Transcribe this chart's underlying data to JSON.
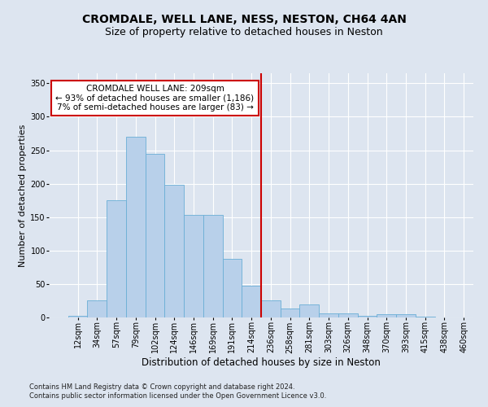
{
  "title1": "CROMDALE, WELL LANE, NESS, NESTON, CH64 4AN",
  "title2": "Size of property relative to detached houses in Neston",
  "xlabel": "Distribution of detached houses by size in Neston",
  "ylabel": "Number of detached properties",
  "footnote1": "Contains HM Land Registry data © Crown copyright and database right 2024.",
  "footnote2": "Contains public sector information licensed under the Open Government Licence v3.0.",
  "annotation_title": "CROMDALE WELL LANE: 209sqm",
  "annotation_line1": "← 93% of detached houses are smaller (1,186)",
  "annotation_line2": "7% of semi-detached houses are larger (83) →",
  "bar_values": [
    3,
    25,
    175,
    270,
    245,
    198,
    153,
    153,
    88,
    47,
    25,
    13,
    20,
    6,
    6,
    3,
    5,
    5,
    1,
    0
  ],
  "categories": [
    "12sqm",
    "34sqm",
    "57sqm",
    "79sqm",
    "102sqm",
    "124sqm",
    "146sqm",
    "169sqm",
    "191sqm",
    "214sqm",
    "236sqm",
    "258sqm",
    "281sqm",
    "303sqm",
    "326sqm",
    "348sqm",
    "370sqm",
    "393sqm",
    "415sqm",
    "438sqm",
    "460sqm"
  ],
  "bar_color": "#b8d0ea",
  "bar_edge_color": "#6aaed6",
  "vline_x": 9.5,
  "vline_color": "#cc0000",
  "ylim": [
    0,
    365
  ],
  "background_color": "#dde5f0",
  "grid_color": "#ffffff",
  "annotation_box_color": "#ffffff",
  "annotation_box_edge": "#cc0000",
  "title1_fontsize": 10,
  "title2_fontsize": 9,
  "axis_label_fontsize": 8.5,
  "ylabel_fontsize": 8,
  "tick_fontsize": 7,
  "footnote_fontsize": 6,
  "annotation_fontsize": 7.5
}
